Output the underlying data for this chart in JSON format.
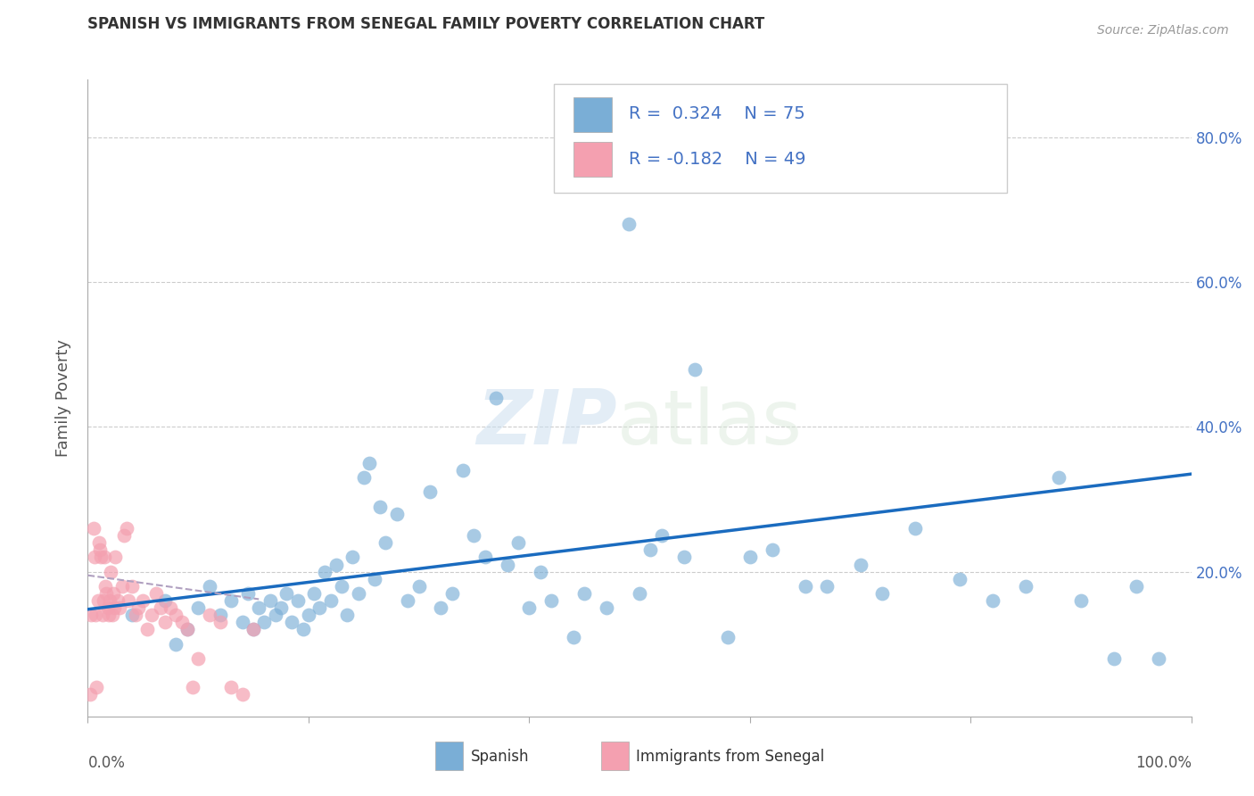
{
  "title": "SPANISH VS IMMIGRANTS FROM SENEGAL FAMILY POVERTY CORRELATION CHART",
  "source": "Source: ZipAtlas.com",
  "ylabel": "Family Poverty",
  "watermark_zip": "ZIP",
  "watermark_atlas": "atlas",
  "xlim": [
    0,
    1
  ],
  "ylim": [
    0,
    0.88
  ],
  "blue_color": "#7aaed6",
  "pink_color": "#f4a0b0",
  "blue_line_color": "#1a6bbf",
  "pink_line_color": "#b0a0c0",
  "title_color": "#333333",
  "axis_label_color": "#555555",
  "right_tick_color": "#4472c4",
  "grid_color": "#cccccc",
  "background_color": "#ffffff",
  "blue_scatter_x": [
    0.04,
    0.07,
    0.08,
    0.09,
    0.1,
    0.11,
    0.12,
    0.13,
    0.14,
    0.145,
    0.15,
    0.155,
    0.16,
    0.165,
    0.17,
    0.175,
    0.18,
    0.185,
    0.19,
    0.195,
    0.2,
    0.205,
    0.21,
    0.215,
    0.22,
    0.225,
    0.23,
    0.235,
    0.24,
    0.245,
    0.25,
    0.255,
    0.26,
    0.265,
    0.27,
    0.28,
    0.29,
    0.3,
    0.31,
    0.32,
    0.33,
    0.34,
    0.35,
    0.36,
    0.37,
    0.38,
    0.39,
    0.4,
    0.41,
    0.42,
    0.44,
    0.45,
    0.47,
    0.49,
    0.5,
    0.51,
    0.52,
    0.54,
    0.55,
    0.58,
    0.6,
    0.62,
    0.65,
    0.67,
    0.7,
    0.72,
    0.75,
    0.79,
    0.82,
    0.85,
    0.88,
    0.9,
    0.93,
    0.95,
    0.97
  ],
  "blue_scatter_y": [
    0.14,
    0.16,
    0.1,
    0.12,
    0.15,
    0.18,
    0.14,
    0.16,
    0.13,
    0.17,
    0.12,
    0.15,
    0.13,
    0.16,
    0.14,
    0.15,
    0.17,
    0.13,
    0.16,
    0.12,
    0.14,
    0.17,
    0.15,
    0.2,
    0.16,
    0.21,
    0.18,
    0.14,
    0.22,
    0.17,
    0.33,
    0.35,
    0.19,
    0.29,
    0.24,
    0.28,
    0.16,
    0.18,
    0.31,
    0.15,
    0.17,
    0.34,
    0.25,
    0.22,
    0.44,
    0.21,
    0.24,
    0.15,
    0.2,
    0.16,
    0.11,
    0.17,
    0.15,
    0.68,
    0.17,
    0.23,
    0.25,
    0.22,
    0.48,
    0.11,
    0.22,
    0.23,
    0.18,
    0.18,
    0.21,
    0.17,
    0.26,
    0.19,
    0.16,
    0.18,
    0.33,
    0.16,
    0.08,
    0.18,
    0.08
  ],
  "pink_scatter_x": [
    0.003,
    0.005,
    0.006,
    0.007,
    0.008,
    0.009,
    0.01,
    0.011,
    0.012,
    0.013,
    0.014,
    0.015,
    0.016,
    0.017,
    0.018,
    0.019,
    0.02,
    0.021,
    0.022,
    0.023,
    0.024,
    0.025,
    0.027,
    0.029,
    0.031,
    0.033,
    0.035,
    0.037,
    0.04,
    0.043,
    0.046,
    0.05,
    0.054,
    0.058,
    0.062,
    0.066,
    0.07,
    0.075,
    0.08,
    0.085,
    0.09,
    0.095,
    0.1,
    0.11,
    0.12,
    0.13,
    0.14,
    0.15,
    0.002
  ],
  "pink_scatter_y": [
    0.14,
    0.26,
    0.22,
    0.14,
    0.04,
    0.16,
    0.24,
    0.23,
    0.22,
    0.14,
    0.16,
    0.22,
    0.18,
    0.17,
    0.15,
    0.14,
    0.16,
    0.2,
    0.14,
    0.17,
    0.15,
    0.22,
    0.16,
    0.15,
    0.18,
    0.25,
    0.26,
    0.16,
    0.18,
    0.14,
    0.15,
    0.16,
    0.12,
    0.14,
    0.17,
    0.15,
    0.13,
    0.15,
    0.14,
    0.13,
    0.12,
    0.04,
    0.08,
    0.14,
    0.13,
    0.04,
    0.03,
    0.12,
    0.03
  ],
  "blue_trend_x": [
    0.0,
    1.0
  ],
  "blue_trend_y": [
    0.148,
    0.335
  ],
  "pink_trend_x": [
    0.0,
    0.155
  ],
  "pink_trend_y": [
    0.195,
    0.162
  ]
}
